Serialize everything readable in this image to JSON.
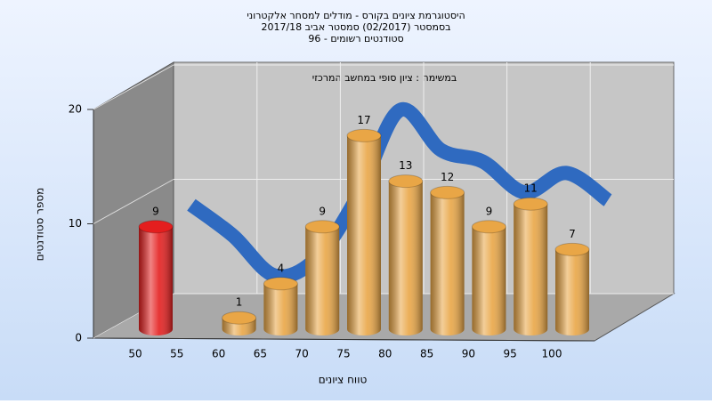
{
  "chart_data": {
    "type": "bar3d",
    "title": [
      "היסטוגרמת ציונים בקורס - מודלים למסחר אלקטרוני",
      "בסמסטר  (02/2017)  סמסטר אביב 2017/18",
      "סטודנטים רשומים - 96"
    ],
    "subtitle": "במשימה : ציון סופי במחשב המרכזי",
    "x_label": "טווח ציונים",
    "y_label": "מספר סטודנטים",
    "categories": [
      50,
      55,
      60,
      65,
      70,
      75,
      80,
      85,
      90,
      95,
      100
    ],
    "series": [
      {
        "values": [
          9,
          null,
          1,
          4,
          9,
          17,
          13,
          12,
          9,
          11,
          7
        ],
        "colors": [
          "#e41e1e",
          null,
          "#e9a646",
          "#e9a646",
          "#e9a646",
          "#e9a646",
          "#e9a646",
          "#e9a646",
          "#e9a646",
          "#e9a646",
          "#e9a646"
        ]
      },
      {
        "values": [
          9.2,
          6.5,
          3,
          4.5,
          10,
          17.5,
          14,
          13,
          10.3,
          12,
          9.6
        ],
        "color": "#2f6ac0"
      }
    ],
    "ylim": [
      0,
      20
    ],
    "yticks": [
      0,
      10,
      20
    ],
    "grid": true
  }
}
